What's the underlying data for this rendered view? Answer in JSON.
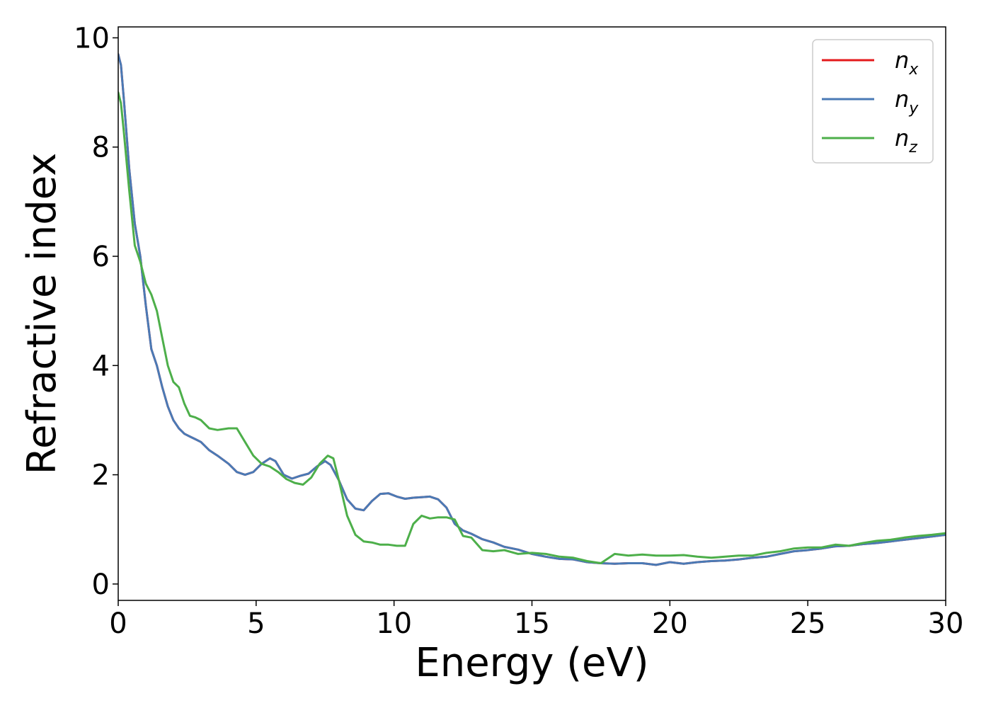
{
  "chart_data": {
    "type": "line",
    "title": "",
    "xlabel": "Energy (eV)",
    "ylabel": "Refractive index",
    "xlim": [
      0,
      30
    ],
    "ylim": [
      -0.3,
      10.2
    ],
    "xticks": [
      0,
      5,
      10,
      15,
      20,
      25,
      30
    ],
    "yticks": [
      0,
      2,
      4,
      6,
      8,
      10
    ],
    "grid": false,
    "legend_position": "top-right",
    "series": [
      {
        "name": "n_x",
        "label_main": "n",
        "label_sub": "x",
        "color": "#e41a1c",
        "x": [
          0,
          0.1,
          0.2,
          0.4,
          0.6,
          0.8,
          1.0,
          1.2,
          1.4,
          1.6,
          1.8,
          2.0,
          2.2,
          2.4,
          2.6,
          2.8,
          3.0,
          3.3,
          3.6,
          4.0,
          4.3,
          4.6,
          4.9,
          5.2,
          5.5,
          5.7,
          6.0,
          6.3,
          6.6,
          6.9,
          7.2,
          7.5,
          7.7,
          8.0,
          8.3,
          8.6,
          8.9,
          9.2,
          9.5,
          9.8,
          10.1,
          10.4,
          10.7,
          11.0,
          11.3,
          11.6,
          11.9,
          12.2,
          12.5,
          12.8,
          13.2,
          13.6,
          14.0,
          14.5,
          15.0,
          15.5,
          16.0,
          16.5,
          17.0,
          17.5,
          18.0,
          18.5,
          19.0,
          19.5,
          20.0,
          20.5,
          21.0,
          21.5,
          22.0,
          22.5,
          23.0,
          23.5,
          24.0,
          24.5,
          25.0,
          25.5,
          26.0,
          26.5,
          27.0,
          27.5,
          28.0,
          28.5,
          29.0,
          29.5,
          30.0
        ],
        "y": [
          9.7,
          9.5,
          8.9,
          7.6,
          6.6,
          6.0,
          5.1,
          4.3,
          4.0,
          3.6,
          3.25,
          3.0,
          2.85,
          2.75,
          2.7,
          2.65,
          2.6,
          2.45,
          2.35,
          2.2,
          2.05,
          2.0,
          2.05,
          2.2,
          2.3,
          2.25,
          2.0,
          1.93,
          1.98,
          2.02,
          2.15,
          2.25,
          2.18,
          1.9,
          1.55,
          1.38,
          1.35,
          1.52,
          1.65,
          1.66,
          1.6,
          1.56,
          1.58,
          1.59,
          1.6,
          1.55,
          1.4,
          1.1,
          0.98,
          0.92,
          0.82,
          0.76,
          0.68,
          0.63,
          0.55,
          0.5,
          0.46,
          0.45,
          0.4,
          0.38,
          0.37,
          0.38,
          0.38,
          0.35,
          0.4,
          0.37,
          0.4,
          0.42,
          0.43,
          0.45,
          0.48,
          0.5,
          0.55,
          0.6,
          0.62,
          0.65,
          0.69,
          0.7,
          0.73,
          0.75,
          0.78,
          0.81,
          0.84,
          0.87,
          0.9
        ]
      },
      {
        "name": "n_y",
        "label_main": "n",
        "label_sub": "y",
        "color": "#4a7ab5",
        "x": [
          0,
          0.1,
          0.2,
          0.4,
          0.6,
          0.8,
          1.0,
          1.2,
          1.4,
          1.6,
          1.8,
          2.0,
          2.2,
          2.4,
          2.6,
          2.8,
          3.0,
          3.3,
          3.6,
          4.0,
          4.3,
          4.6,
          4.9,
          5.2,
          5.5,
          5.7,
          6.0,
          6.3,
          6.6,
          6.9,
          7.2,
          7.5,
          7.7,
          8.0,
          8.3,
          8.6,
          8.9,
          9.2,
          9.5,
          9.8,
          10.1,
          10.4,
          10.7,
          11.0,
          11.3,
          11.6,
          11.9,
          12.2,
          12.5,
          12.8,
          13.2,
          13.6,
          14.0,
          14.5,
          15.0,
          15.5,
          16.0,
          16.5,
          17.0,
          17.5,
          18.0,
          18.5,
          19.0,
          19.5,
          20.0,
          20.5,
          21.0,
          21.5,
          22.0,
          22.5,
          23.0,
          23.5,
          24.0,
          24.5,
          25.0,
          25.5,
          26.0,
          26.5,
          27.0,
          27.5,
          28.0,
          28.5,
          29.0,
          29.5,
          30.0
        ],
        "y": [
          9.7,
          9.5,
          8.9,
          7.6,
          6.6,
          6.0,
          5.1,
          4.3,
          4.0,
          3.6,
          3.25,
          3.0,
          2.85,
          2.75,
          2.7,
          2.65,
          2.6,
          2.45,
          2.35,
          2.2,
          2.05,
          2.0,
          2.05,
          2.2,
          2.3,
          2.25,
          2.0,
          1.93,
          1.98,
          2.02,
          2.15,
          2.25,
          2.18,
          1.9,
          1.55,
          1.38,
          1.35,
          1.52,
          1.65,
          1.66,
          1.6,
          1.56,
          1.58,
          1.59,
          1.6,
          1.55,
          1.4,
          1.1,
          0.98,
          0.92,
          0.82,
          0.76,
          0.68,
          0.63,
          0.55,
          0.5,
          0.46,
          0.45,
          0.4,
          0.38,
          0.37,
          0.38,
          0.38,
          0.35,
          0.4,
          0.37,
          0.4,
          0.42,
          0.43,
          0.45,
          0.48,
          0.5,
          0.55,
          0.6,
          0.62,
          0.65,
          0.69,
          0.7,
          0.73,
          0.75,
          0.78,
          0.81,
          0.84,
          0.87,
          0.9
        ]
      },
      {
        "name": "n_z",
        "label_main": "n",
        "label_sub": "z",
        "color": "#4daf4a",
        "x": [
          0,
          0.1,
          0.2,
          0.4,
          0.6,
          0.8,
          1.0,
          1.2,
          1.4,
          1.6,
          1.8,
          2.0,
          2.2,
          2.4,
          2.6,
          2.8,
          3.0,
          3.3,
          3.6,
          4.0,
          4.3,
          4.6,
          4.9,
          5.2,
          5.5,
          5.8,
          6.1,
          6.4,
          6.7,
          7.0,
          7.3,
          7.6,
          7.8,
          8.0,
          8.3,
          8.6,
          8.9,
          9.2,
          9.5,
          9.8,
          10.1,
          10.4,
          10.7,
          11.0,
          11.3,
          11.6,
          11.9,
          12.2,
          12.5,
          12.8,
          13.2,
          13.6,
          14.0,
          14.5,
          15.0,
          15.5,
          16.0,
          16.5,
          17.0,
          17.5,
          18.0,
          18.5,
          19.0,
          19.5,
          20.0,
          20.5,
          21.0,
          21.5,
          22.0,
          22.5,
          23.0,
          23.5,
          24.0,
          24.5,
          25.0,
          25.5,
          26.0,
          26.5,
          27.0,
          27.5,
          28.0,
          28.5,
          29.0,
          29.5,
          30.0
        ],
        "y": [
          9.0,
          8.8,
          8.3,
          7.2,
          6.2,
          5.9,
          5.5,
          5.3,
          5.0,
          4.5,
          4.0,
          3.7,
          3.6,
          3.3,
          3.08,
          3.05,
          3.0,
          2.85,
          2.82,
          2.85,
          2.85,
          2.6,
          2.35,
          2.2,
          2.15,
          2.05,
          1.92,
          1.85,
          1.82,
          1.95,
          2.2,
          2.35,
          2.3,
          1.9,
          1.25,
          0.9,
          0.78,
          0.76,
          0.72,
          0.72,
          0.7,
          0.7,
          1.1,
          1.25,
          1.2,
          1.22,
          1.22,
          1.18,
          0.88,
          0.85,
          0.62,
          0.6,
          0.62,
          0.55,
          0.57,
          0.55,
          0.5,
          0.48,
          0.42,
          0.38,
          0.55,
          0.52,
          0.54,
          0.52,
          0.52,
          0.53,
          0.5,
          0.48,
          0.5,
          0.52,
          0.52,
          0.57,
          0.6,
          0.65,
          0.67,
          0.67,
          0.72,
          0.7,
          0.75,
          0.79,
          0.81,
          0.85,
          0.88,
          0.9,
          0.93
        ]
      }
    ]
  }
}
